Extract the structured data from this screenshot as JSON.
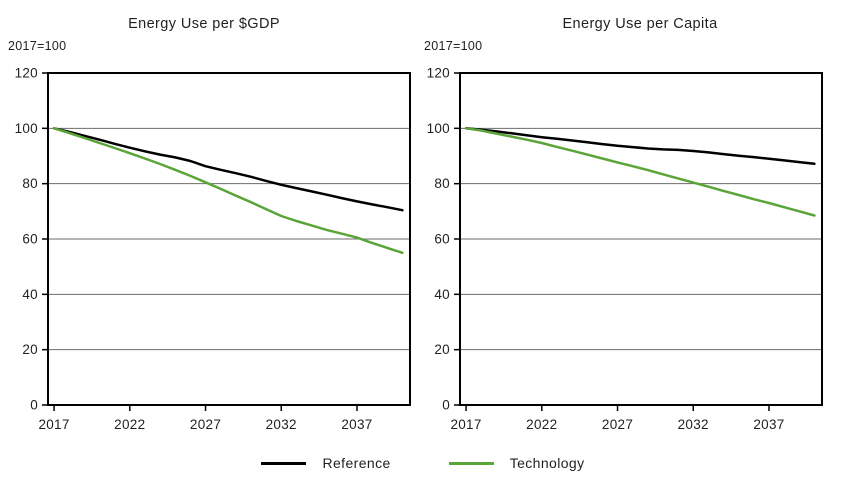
{
  "page": {
    "background": "#ffffff"
  },
  "colors": {
    "reference": "#000000",
    "technology": "#5aa438",
    "gridline": "#6b6b6b",
    "axis": "#000000",
    "text": "#231f20"
  },
  "legend": {
    "items": [
      {
        "label": "Reference",
        "color_key": "reference"
      },
      {
        "label": "Technology",
        "color_key": "technology"
      }
    ],
    "position": "bottom-center-shared"
  },
  "chart_data": [
    {
      "type": "line",
      "title": "Energy Use per $GDP",
      "index_label": "2017=100",
      "xlabel": "",
      "ylabel": "",
      "xlim": [
        2016.6,
        2040.5
      ],
      "ylim": [
        0,
        120
      ],
      "xticks": [
        2017,
        2022,
        2027,
        2032,
        2037
      ],
      "yticks": [
        0,
        20,
        40,
        60,
        80,
        100,
        120
      ],
      "grid": true,
      "x": [
        2017,
        2018,
        2019,
        2020,
        2021,
        2022,
        2023,
        2024,
        2025,
        2026,
        2027,
        2028,
        2029,
        2030,
        2031,
        2032,
        2033,
        2034,
        2035,
        2036,
        2037,
        2038,
        2039,
        2040
      ],
      "series": [
        {
          "name": "Reference",
          "color_key": "reference",
          "values": [
            100,
            98.7,
            97.3,
            95.9,
            94.4,
            93.0,
            91.7,
            90.5,
            89.5,
            88.2,
            86.3,
            85.0,
            83.8,
            82.5,
            81.0,
            79.6,
            78.4,
            77.2,
            76.0,
            74.8,
            73.6,
            72.5,
            71.5,
            70.4
          ]
        },
        {
          "name": "Technology",
          "color_key": "technology",
          "values": [
            100,
            98.3,
            96.5,
            94.7,
            92.9,
            91.0,
            89.1,
            87.1,
            85.0,
            82.8,
            80.5,
            78.1,
            75.7,
            73.3,
            70.8,
            68.3,
            66.5,
            64.9,
            63.3,
            61.9,
            60.5,
            58.6,
            56.8,
            55.0
          ]
        }
      ]
    },
    {
      "type": "line",
      "title": "Energy Use per Capita",
      "index_label": "2017=100",
      "xlabel": "",
      "ylabel": "",
      "xlim": [
        2016.6,
        2040.5
      ],
      "ylim": [
        0,
        120
      ],
      "xticks": [
        2017,
        2022,
        2027,
        2032,
        2037
      ],
      "yticks": [
        0,
        20,
        40,
        60,
        80,
        100,
        120
      ],
      "grid": true,
      "x": [
        2017,
        2018,
        2019,
        2020,
        2021,
        2022,
        2023,
        2024,
        2025,
        2026,
        2027,
        2028,
        2029,
        2030,
        2031,
        2032,
        2033,
        2034,
        2035,
        2036,
        2037,
        2038,
        2039,
        2040
      ],
      "series": [
        {
          "name": "Reference",
          "color_key": "reference",
          "values": [
            100,
            99.5,
            98.9,
            98.2,
            97.5,
            96.8,
            96.2,
            95.6,
            95.0,
            94.3,
            93.7,
            93.2,
            92.7,
            92.4,
            92.2,
            91.8,
            91.3,
            90.7,
            90.1,
            89.6,
            89.0,
            88.4,
            87.8,
            87.2
          ]
        },
        {
          "name": "Technology",
          "color_key": "technology",
          "values": [
            100,
            99.2,
            98.1,
            97.0,
            95.9,
            94.7,
            93.3,
            91.9,
            90.5,
            89.1,
            87.7,
            86.3,
            84.9,
            83.4,
            81.9,
            80.4,
            78.9,
            77.4,
            75.9,
            74.4,
            73.0,
            71.5,
            70.0,
            68.5
          ]
        }
      ]
    }
  ]
}
